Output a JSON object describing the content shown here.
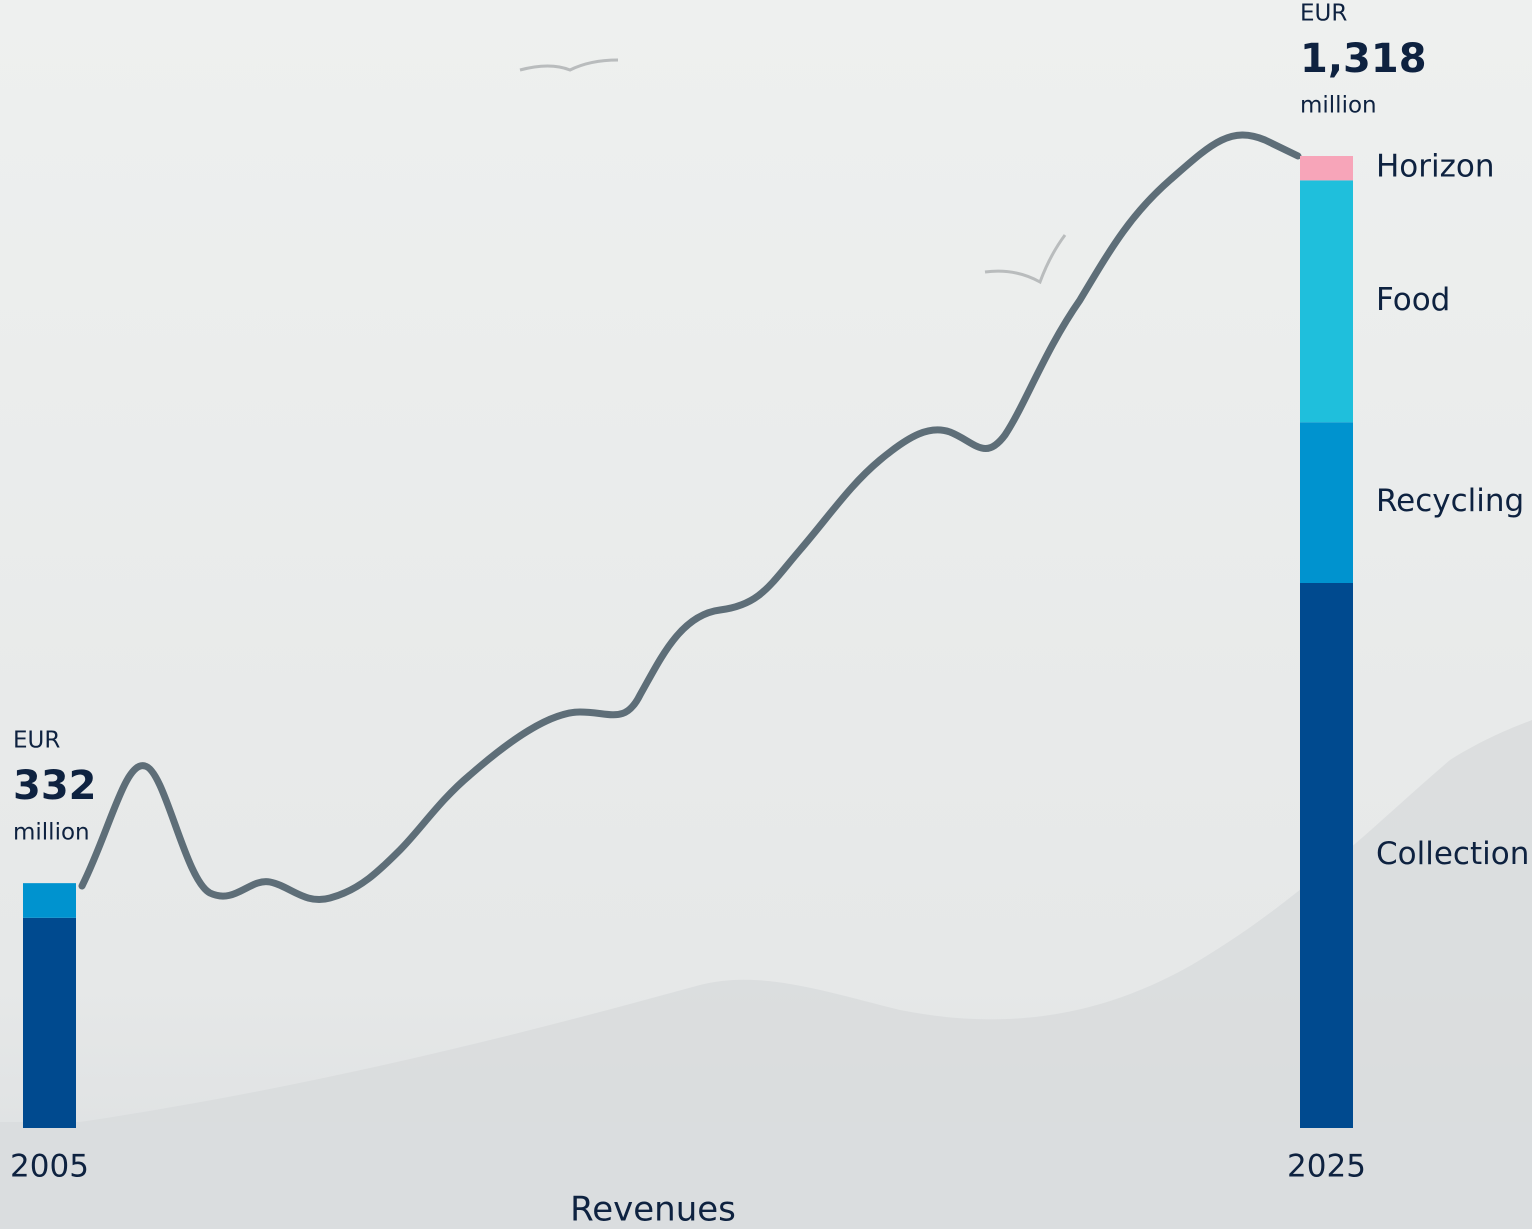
{
  "chart_data": {
    "type": "bar",
    "stacked": true,
    "xlabel": "Revenues",
    "categories": [
      "2005",
      "2025"
    ],
    "series": [
      {
        "name": "Collection",
        "color": "#004a8f",
        "values": [
          285,
          739
        ]
      },
      {
        "name": "Recycling",
        "color": "#0093cf",
        "values": [
          47,
          218
        ]
      },
      {
        "name": "Food",
        "color": "#1fbfdc",
        "values": [
          null,
          328
        ]
      },
      {
        "name": "Horizon",
        "color": "#f7a5b9",
        "values": [
          null,
          33
        ]
      }
    ],
    "totals": {
      "values": [
        332,
        1318
      ],
      "value_labels": [
        "332",
        "1,318"
      ]
    },
    "unit_prefix": "EUR",
    "unit_suffix": "million"
  }
}
